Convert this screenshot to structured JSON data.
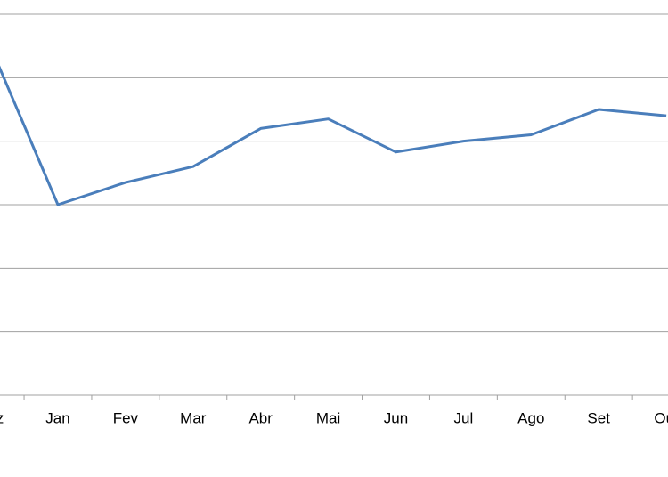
{
  "chart_data": {
    "type": "line",
    "categories": [
      "Dez",
      "Jan",
      "Fev",
      "Mar",
      "Abr",
      "Mai",
      "Jun",
      "Jul",
      "Ago",
      "Set",
      "Out"
    ],
    "series": [
      {
        "color": "#4a7ebb",
        "values": [
          5.5,
          3.0,
          3.35,
          3.6,
          4.2,
          4.35,
          3.83,
          4.0,
          4.1,
          4.5,
          4.4
        ]
      }
    ],
    "ylim": [
      0,
      6
    ],
    "yticks": [
      0,
      1,
      2,
      3,
      4,
      5,
      6
    ],
    "grid": true
  }
}
